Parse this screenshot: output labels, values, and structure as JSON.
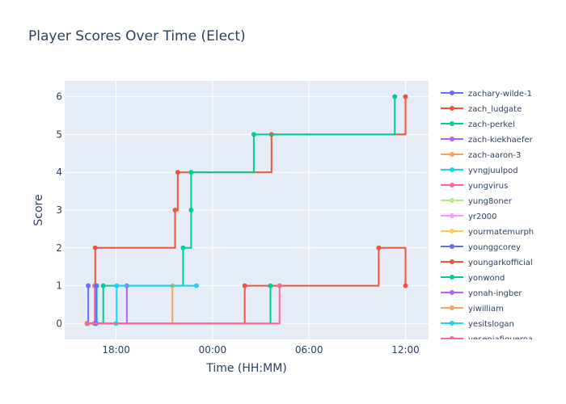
{
  "chart_data": {
    "type": "line",
    "line_shape": "step",
    "title": "Player Scores Over Time (Elect)",
    "xlabel": "Time (HH:MM)",
    "ylabel": "Score",
    "xlim": [
      "2024-01-01T14:48",
      "2024-01-02T13:26"
    ],
    "ylim": [
      -0.42,
      6.42
    ],
    "x_ticks": [
      "2024-01-01T18:00",
      "2024-01-02T00:00",
      "2024-01-02T06:00",
      "2024-01-02T12:00"
    ],
    "x_tick_labels": [
      "18:00",
      "00:00",
      "06:00",
      "12:00"
    ],
    "y_ticks": [
      0,
      1,
      2,
      3,
      4,
      5,
      6
    ],
    "y_tick_labels": [
      "0",
      "1",
      "2",
      "3",
      "4",
      "5",
      "6"
    ],
    "grid": true,
    "background": "#e5ecf6",
    "legend_position": "right",
    "series": [
      {
        "name": "zachary-wilde-1",
        "color": "#636efa",
        "points": [
          [
            "2024-01-01T16:12",
            0
          ],
          [
            "2024-01-01T16:16",
            1
          ]
        ]
      },
      {
        "name": "zach_ludgate",
        "color": "#ef553b",
        "points": [
          [
            "2024-01-01T16:12",
            0
          ],
          [
            "2024-01-01T16:40",
            0
          ],
          [
            "2024-01-01T16:42",
            2
          ],
          [
            "2024-01-01T21:40",
            3
          ],
          [
            "2024-01-01T21:50",
            4
          ],
          [
            "2024-01-02T03:40",
            5
          ],
          [
            "2024-01-02T12:00",
            6
          ]
        ]
      },
      {
        "name": "zach-perkel",
        "color": "#00cc96",
        "points": [
          [
            "2024-01-01T16:12",
            0
          ],
          [
            "2024-01-01T17:12",
            1
          ],
          [
            "2024-01-01T22:10",
            2
          ],
          [
            "2024-01-01T22:40",
            3
          ],
          [
            "2024-01-01T22:40",
            4
          ],
          [
            "2024-01-02T02:34",
            5
          ],
          [
            "2024-01-02T11:20",
            6
          ]
        ]
      },
      {
        "name": "zach-kiekhaefer",
        "color": "#ab63fa",
        "points": [
          [
            "2024-01-01T16:12",
            0
          ],
          [
            "2024-01-01T18:40",
            1
          ]
        ]
      },
      {
        "name": "zach-aaron-3",
        "color": "#ffa15a",
        "points": [
          [
            "2024-01-01T16:12",
            0
          ],
          [
            "2024-01-01T21:30",
            1
          ]
        ]
      },
      {
        "name": "yvngjuulpod",
        "color": "#19d3f3",
        "points": [
          [
            "2024-01-01T16:12",
            0
          ],
          [
            "2024-01-01T16:46",
            0
          ],
          [
            "2024-01-01T16:48",
            1
          ]
        ]
      },
      {
        "name": "yungvirus",
        "color": "#ff6692",
        "points": [
          [
            "2024-01-01T16:12",
            0
          ],
          [
            "2024-01-01T16:40",
            1
          ]
        ]
      },
      {
        "name": "yung8oner",
        "color": "#b6e880",
        "points": [
          [
            "2024-01-01T16:12",
            0
          ]
        ]
      },
      {
        "name": "yr2000",
        "color": "#ff97ff",
        "points": [
          [
            "2024-01-01T16:12",
            0
          ]
        ]
      },
      {
        "name": "yourmatemurph",
        "color": "#fecb52",
        "points": [
          [
            "2024-01-01T16:12",
            0
          ]
        ]
      },
      {
        "name": "younggcorey",
        "color": "#636efa",
        "points": [
          [
            "2024-01-01T16:12",
            0
          ],
          [
            "2024-01-01T16:44",
            0
          ],
          [
            "2024-01-01T16:46",
            1
          ]
        ]
      },
      {
        "name": "youngarkofficial",
        "color": "#ef553b",
        "points": [
          [
            "2024-01-01T16:12",
            0
          ],
          [
            "2024-01-02T02:00",
            1
          ],
          [
            "2024-01-02T10:20",
            2
          ],
          [
            "2024-01-02T12:00",
            1
          ]
        ]
      },
      {
        "name": "yonwond",
        "color": "#00cc96",
        "points": [
          [
            "2024-01-01T16:12",
            0
          ],
          [
            "2024-01-02T03:36",
            1
          ]
        ]
      },
      {
        "name": "yonah-ingber",
        "color": "#ab63fa",
        "points": [
          [
            "2024-01-01T16:12",
            0
          ]
        ]
      },
      {
        "name": "yiwilliam",
        "color": "#ffa15a",
        "points": [
          [
            "2024-01-01T16:12",
            0
          ]
        ]
      },
      {
        "name": "yesitslogan",
        "color": "#19d3f3",
        "points": [
          [
            "2024-01-01T16:12",
            0
          ],
          [
            "2024-01-01T18:00",
            0
          ],
          [
            "2024-01-01T18:02",
            1
          ],
          [
            "2024-01-01T23:00",
            1
          ]
        ]
      },
      {
        "name": "yeseniafigueroa",
        "color": "#ff6692",
        "points": [
          [
            "2024-01-01T16:12",
            0
          ],
          [
            "2024-01-02T04:10",
            1
          ]
        ]
      }
    ]
  }
}
